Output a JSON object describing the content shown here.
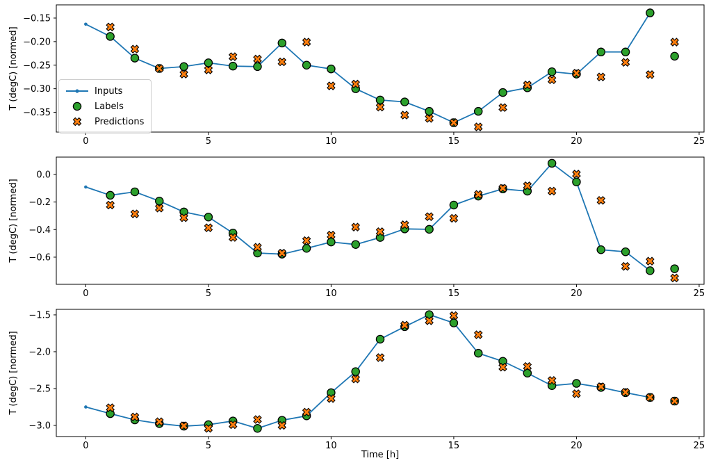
{
  "figure": {
    "xlabel": "Time [h]",
    "ylabel": "T (degC) [normed]",
    "background": "#ffffff",
    "colors": {
      "inputs": "#1f77b4",
      "labels": "#2ca02c",
      "predictions": "#ff7f0e",
      "marker_edge": "#000000",
      "spine": "#000000",
      "tick_label": "#000000"
    },
    "legend": {
      "items": [
        {
          "label": "Inputs",
          "marker": "line-dot"
        },
        {
          "label": "Labels",
          "marker": "circle"
        },
        {
          "label": "Predictions",
          "marker": "X"
        }
      ]
    }
  },
  "chart_data": [
    {
      "type": "line",
      "ylabel": "T (degC) [normed]",
      "xlim": [
        -1.2,
        25.2
      ],
      "ylim": [
        -0.392,
        -0.122
      ],
      "xticks": [
        0,
        5,
        10,
        15,
        20,
        25
      ],
      "xtick_labels": [
        "0",
        "5",
        "10",
        "15",
        "20",
        "25"
      ],
      "yticks": [
        -0.15,
        -0.2,
        -0.25,
        -0.3,
        -0.35
      ],
      "ytick_labels": [
        "−0.15",
        "−0.20",
        "−0.25",
        "−0.30",
        "−0.35"
      ],
      "grid": false,
      "series": [
        {
          "name": "Inputs",
          "kind": "line+dot",
          "x": [
            0,
            1,
            2,
            3,
            4,
            5,
            6,
            7,
            8,
            9,
            10,
            11,
            12,
            13,
            14,
            15,
            16,
            17,
            18,
            19,
            20,
            21,
            22,
            23
          ],
          "y": [
            -0.163,
            -0.189,
            -0.235,
            -0.257,
            -0.253,
            -0.245,
            -0.252,
            -0.253,
            -0.203,
            -0.25,
            -0.258,
            -0.3,
            -0.324,
            -0.328,
            -0.348,
            -0.372,
            -0.348,
            -0.308,
            -0.298,
            -0.264,
            -0.269,
            -0.222,
            -0.222,
            -0.139
          ]
        },
        {
          "name": "Labels",
          "kind": "scatter-circle",
          "x": [
            1,
            2,
            3,
            4,
            5,
            6,
            7,
            8,
            9,
            10,
            11,
            12,
            13,
            14,
            15,
            16,
            17,
            18,
            19,
            20,
            21,
            22,
            23,
            24
          ],
          "y": [
            -0.189,
            -0.235,
            -0.257,
            -0.253,
            -0.245,
            -0.252,
            -0.253,
            -0.203,
            -0.25,
            -0.258,
            -0.3,
            -0.324,
            -0.328,
            -0.348,
            -0.372,
            -0.348,
            -0.308,
            -0.298,
            -0.264,
            -0.269,
            -0.222,
            -0.222,
            -0.139,
            -0.231
          ]
        },
        {
          "name": "Predictions",
          "kind": "scatter-X",
          "x": [
            1,
            2,
            3,
            4,
            5,
            6,
            7,
            8,
            9,
            10,
            11,
            12,
            13,
            14,
            15,
            16,
            17,
            18,
            19,
            20,
            21,
            22,
            23,
            24
          ],
          "y": [
            -0.169,
            -0.216,
            -0.257,
            -0.269,
            -0.26,
            -0.232,
            -0.237,
            -0.243,
            -0.201,
            -0.294,
            -0.29,
            -0.339,
            -0.356,
            -0.363,
            -0.372,
            -0.381,
            -0.34,
            -0.292,
            -0.281,
            -0.267,
            -0.275,
            -0.244,
            -0.27,
            -0.201
          ]
        }
      ]
    },
    {
      "type": "line",
      "ylabel": "T (degC) [normed]",
      "xlim": [
        -1.2,
        25.2
      ],
      "ylim": [
        -0.797,
        0.126
      ],
      "xticks": [
        0,
        5,
        10,
        15,
        20,
        25
      ],
      "xtick_labels": [
        "0",
        "5",
        "10",
        "15",
        "20",
        "25"
      ],
      "yticks": [
        0.0,
        -0.2,
        -0.4,
        -0.6
      ],
      "ytick_labels": [
        "0.0",
        "−0.2",
        "−0.4",
        "−0.6"
      ],
      "grid": false,
      "series": [
        {
          "name": "Inputs",
          "kind": "line+dot",
          "x": [
            0,
            1,
            2,
            3,
            4,
            5,
            6,
            7,
            8,
            9,
            10,
            11,
            12,
            13,
            14,
            15,
            16,
            17,
            18,
            19,
            20,
            21,
            22,
            23
          ],
          "y": [
            -0.091,
            -0.151,
            -0.126,
            -0.193,
            -0.272,
            -0.309,
            -0.425,
            -0.57,
            -0.578,
            -0.536,
            -0.49,
            -0.508,
            -0.457,
            -0.395,
            -0.398,
            -0.222,
            -0.157,
            -0.105,
            -0.121,
            0.081,
            -0.054,
            -0.546,
            -0.561,
            -0.698
          ]
        },
        {
          "name": "Labels",
          "kind": "scatter-circle",
          "x": [
            1,
            2,
            3,
            4,
            5,
            6,
            7,
            8,
            9,
            10,
            11,
            12,
            13,
            14,
            15,
            16,
            17,
            18,
            19,
            20,
            21,
            22,
            23,
            24
          ],
          "y": [
            -0.151,
            -0.126,
            -0.193,
            -0.272,
            -0.309,
            -0.425,
            -0.57,
            -0.578,
            -0.536,
            -0.49,
            -0.508,
            -0.457,
            -0.395,
            -0.398,
            -0.222,
            -0.157,
            -0.105,
            -0.121,
            0.081,
            -0.054,
            -0.546,
            -0.561,
            -0.698,
            -0.684
          ]
        },
        {
          "name": "Predictions",
          "kind": "scatter-X",
          "x": [
            1,
            2,
            3,
            4,
            5,
            6,
            7,
            8,
            9,
            10,
            11,
            12,
            13,
            14,
            15,
            16,
            17,
            18,
            19,
            20,
            21,
            22,
            23,
            24
          ],
          "y": [
            -0.222,
            -0.286,
            -0.244,
            -0.314,
            -0.387,
            -0.457,
            -0.528,
            -0.571,
            -0.48,
            -0.44,
            -0.382,
            -0.415,
            -0.365,
            -0.306,
            -0.318,
            -0.145,
            -0.1,
            -0.082,
            -0.121,
            0.003,
            -0.188,
            -0.667,
            -0.629,
            -0.751
          ]
        }
      ]
    },
    {
      "type": "line",
      "ylabel": "T (degC) [normed]",
      "xlim": [
        -1.2,
        25.2
      ],
      "ylim": [
        -3.151,
        -1.425
      ],
      "xticks": [
        0,
        5,
        10,
        15,
        20,
        25
      ],
      "xtick_labels": [
        "0",
        "5",
        "10",
        "15",
        "20",
        "25"
      ],
      "yticks": [
        -1.5,
        -2.0,
        -2.5,
        -3.0
      ],
      "ytick_labels": [
        "−1.5",
        "−2.0",
        "−2.5",
        "−3.0"
      ],
      "grid": false,
      "xlabel": "Time [h]",
      "series": [
        {
          "name": "Inputs",
          "kind": "line+dot",
          "x": [
            0,
            1,
            2,
            3,
            4,
            5,
            6,
            7,
            8,
            9,
            10,
            11,
            12,
            13,
            14,
            15,
            16,
            17,
            18,
            19,
            20,
            21,
            22,
            23
          ],
          "y": [
            -2.75,
            -2.84,
            -2.925,
            -2.975,
            -3.01,
            -2.99,
            -2.94,
            -3.04,
            -2.93,
            -2.87,
            -2.556,
            -2.27,
            -1.83,
            -1.66,
            -1.497,
            -1.61,
            -2.02,
            -2.13,
            -2.29,
            -2.46,
            -2.43,
            -2.485,
            -2.556,
            -2.62
          ]
        },
        {
          "name": "Labels",
          "kind": "scatter-circle",
          "x": [
            1,
            2,
            3,
            4,
            5,
            6,
            7,
            8,
            9,
            10,
            11,
            12,
            13,
            14,
            15,
            16,
            17,
            18,
            19,
            20,
            21,
            22,
            23,
            24
          ],
          "y": [
            -2.84,
            -2.925,
            -2.975,
            -3.01,
            -2.99,
            -2.94,
            -3.04,
            -2.93,
            -2.87,
            -2.556,
            -2.27,
            -1.83,
            -1.66,
            -1.497,
            -1.61,
            -2.02,
            -2.13,
            -2.29,
            -2.46,
            -2.43,
            -2.485,
            -2.556,
            -2.62,
            -2.67
          ]
        },
        {
          "name": "Predictions",
          "kind": "scatter-X",
          "x": [
            1,
            2,
            3,
            4,
            5,
            6,
            7,
            8,
            9,
            10,
            11,
            12,
            13,
            14,
            15,
            16,
            17,
            18,
            19,
            20,
            21,
            22,
            23,
            24
          ],
          "y": [
            -2.76,
            -2.885,
            -2.95,
            -3.005,
            -3.04,
            -2.99,
            -2.92,
            -3.0,
            -2.82,
            -2.635,
            -2.37,
            -2.08,
            -1.64,
            -1.58,
            -1.51,
            -1.77,
            -2.21,
            -2.2,
            -2.39,
            -2.57,
            -2.475,
            -2.55,
            -2.62,
            -2.67
          ]
        }
      ]
    }
  ]
}
